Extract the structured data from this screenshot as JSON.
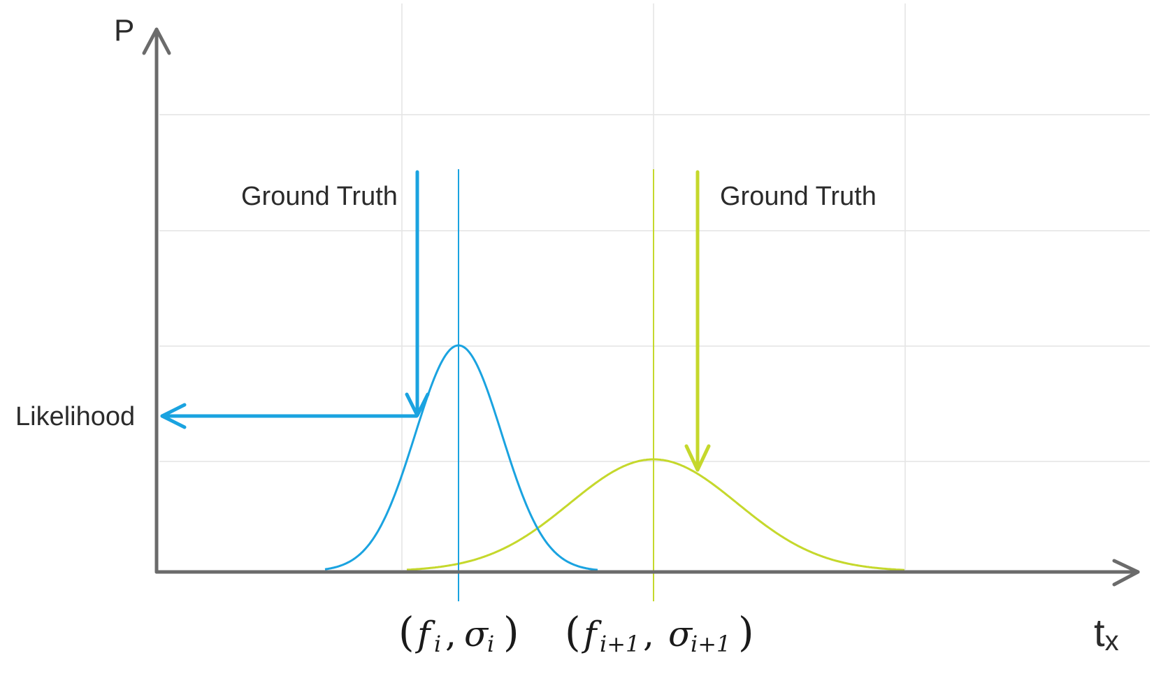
{
  "axes": {
    "y_label": "P",
    "x_label_main": "t",
    "x_label_sub": "x"
  },
  "labels": {
    "ground_truth_left": "Ground Truth",
    "ground_truth_right": "Ground Truth",
    "likelihood": "Likelihood"
  },
  "distributions": {
    "first": {
      "mean_symbol": "f",
      "mean_subscript": "i",
      "sigma_symbol": "σ",
      "sigma_subscript": "i"
    },
    "second": {
      "mean_symbol": "f",
      "mean_subscript": "i+1",
      "sigma_symbol": "σ",
      "sigma_subscript": "i+1"
    }
  },
  "colors": {
    "axis": "#6b6b6b",
    "grid": "#e4e4e4",
    "blue": "#1aa3e0",
    "green": "#c5d82c",
    "text": "#2b2b2b"
  }
}
